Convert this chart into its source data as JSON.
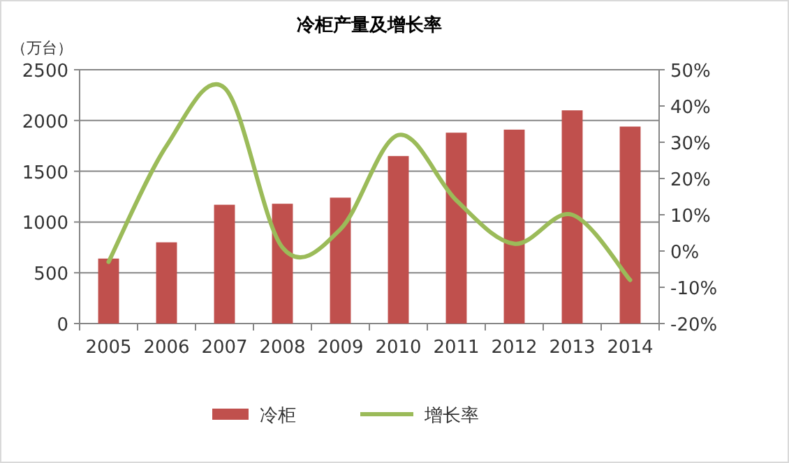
{
  "chart_data": {
    "type": "bar",
    "title": "冷柜产量及增长率",
    "ylabel": "（万台）",
    "categories": [
      "2005",
      "2006",
      "2007",
      "2008",
      "2009",
      "2010",
      "2011",
      "2012",
      "2013",
      "2014"
    ],
    "series": [
      {
        "name": "冷柜",
        "color": "#c0504d",
        "values": [
          640,
          800,
          1170,
          1180,
          1240,
          1650,
          1880,
          1910,
          2100,
          1940
        ]
      },
      {
        "name": "增长率",
        "type": "line",
        "axis": "y2",
        "color": "#9bbb59",
        "values": [
          -3,
          29,
          45,
          1,
          6,
          32,
          14,
          2,
          10,
          -8
        ]
      }
    ],
    "ylim": [
      0,
      2500
    ],
    "yticks": [
      0,
      500,
      1000,
      1500,
      2000,
      2500
    ],
    "y2lim": [
      -20,
      50
    ],
    "y2ticks": [
      {
        "value": -20,
        "label": "-20%"
      },
      {
        "value": -10,
        "label": "-10%"
      },
      {
        "value": 0,
        "label": "0%"
      },
      {
        "value": 10,
        "label": "10%"
      },
      {
        "value": 20,
        "label": "20%"
      },
      {
        "value": 30,
        "label": "30%"
      },
      {
        "value": 40,
        "label": "40%"
      },
      {
        "value": 50,
        "label": "50%"
      }
    ],
    "grid": "y",
    "legend": "bottom"
  }
}
